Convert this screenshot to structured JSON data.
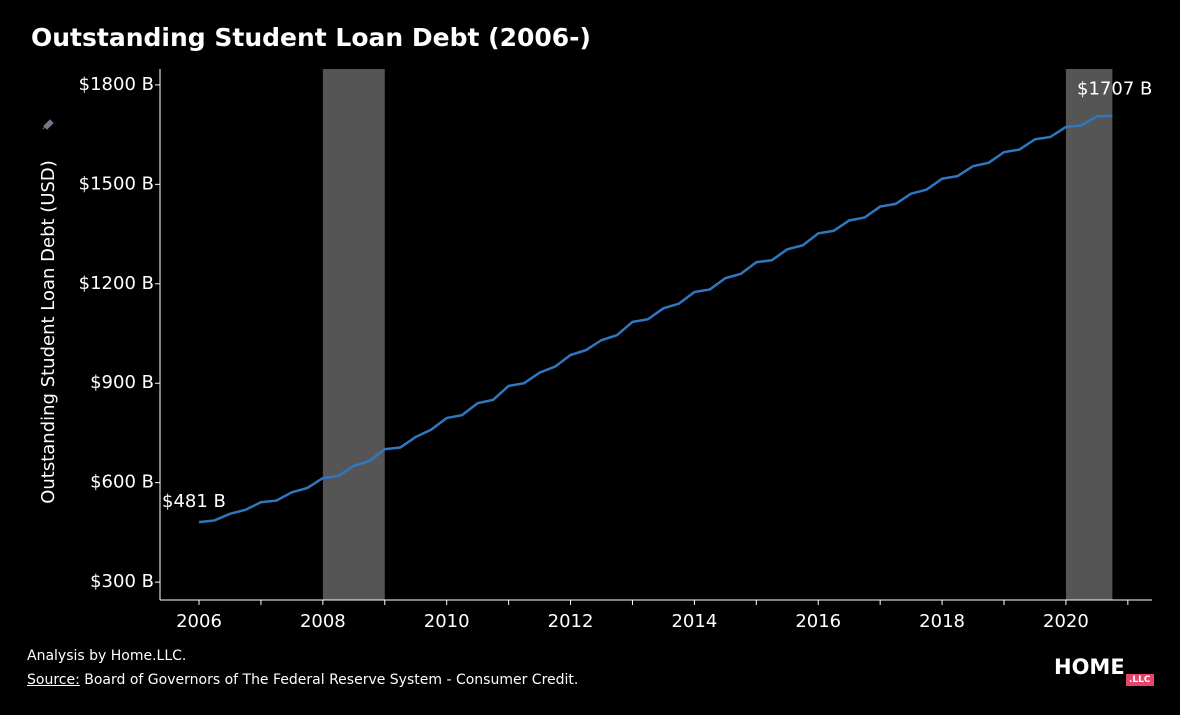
{
  "chart_data": {
    "type": "line",
    "title": "Outstanding Student Loan Debt (2006-)",
    "y_label": "Outstanding Student Loan Debt (USD)",
    "x": [
      2006,
      2006.25,
      2006.5,
      2006.75,
      2007,
      2007.25,
      2007.5,
      2007.75,
      2008,
      2008.25,
      2008.5,
      2008.75,
      2009,
      2009.25,
      2009.5,
      2009.75,
      2010,
      2010.25,
      2010.5,
      2010.75,
      2011,
      2011.25,
      2011.5,
      2011.75,
      2012,
      2012.25,
      2012.5,
      2012.75,
      2013,
      2013.25,
      2013.5,
      2013.75,
      2014,
      2014.25,
      2014.5,
      2014.75,
      2015,
      2015.25,
      2015.5,
      2015.75,
      2016,
      2016.25,
      2016.5,
      2016.75,
      2017,
      2017.25,
      2017.5,
      2017.75,
      2018,
      2018.25,
      2018.5,
      2018.75,
      2019,
      2019.25,
      2019.5,
      2019.75,
      2020,
      2020.25,
      2020.5,
      2020.75
    ],
    "series": [
      {
        "name": "Outstanding Student Loan Debt",
        "color": "#2f78c0",
        "values": [
          481,
          486,
          506,
          518,
          541,
          546,
          571,
          584,
          614,
          620,
          651,
          665,
          701,
          706,
          738,
          760,
          795,
          804,
          840,
          850,
          892,
          900,
          932,
          950,
          985,
          1000,
          1030,
          1045,
          1085,
          1093,
          1126,
          1140,
          1175,
          1183,
          1217,
          1230,
          1265,
          1271,
          1304,
          1316,
          1352,
          1360,
          1391,
          1400,
          1433,
          1441,
          1472,
          1484,
          1517,
          1525,
          1555,
          1565,
          1597,
          1605,
          1636,
          1643,
          1673,
          1678,
          1705,
          1707
        ],
        "value_labels": [
          "$481 B",
          null,
          null,
          null,
          null,
          null,
          null,
          null,
          null,
          null,
          null,
          null,
          null,
          null,
          null,
          null,
          null,
          null,
          null,
          null,
          null,
          null,
          null,
          null,
          null,
          null,
          null,
          null,
          null,
          null,
          null,
          null,
          null,
          null,
          null,
          null,
          null,
          null,
          null,
          null,
          null,
          null,
          null,
          null,
          null,
          null,
          null,
          null,
          null,
          null,
          null,
          null,
          null,
          null,
          null,
          null,
          null,
          null,
          null,
          "$1707 B"
        ]
      }
    ],
    "shaded_ranges": [
      [
        2008,
        2009
      ],
      [
        2020,
        2020.75
      ]
    ],
    "shade_color": "#555555",
    "xlim": [
      2005.37,
      2021.39
    ],
    "xticks": [
      2006,
      2008,
      2010,
      2012,
      2014,
      2016,
      2018,
      2020
    ],
    "xminorticks": [
      2007,
      2009,
      2011,
      2013,
      2015,
      2017,
      2019,
      2021
    ],
    "ylim": [
      246,
      1848
    ],
    "yticks": [
      {
        "value": 300,
        "label": "$300 B"
      },
      {
        "value": 600,
        "label": "$600 B"
      },
      {
        "value": 900,
        "label": "$900 B"
      },
      {
        "value": 1200,
        "label": "$1200 B"
      },
      {
        "value": 1500,
        "label": "$1500 B"
      },
      {
        "value": 1800,
        "label": "$1800 B"
      }
    ]
  },
  "footer": {
    "analysis": "Analysis by Home.LLC.",
    "source_label": "Source:",
    "source": "Board of Governors of The Federal Reserve System - Consumer Credit.",
    "logo": "HOME",
    "logo_badge": ".LLC"
  }
}
